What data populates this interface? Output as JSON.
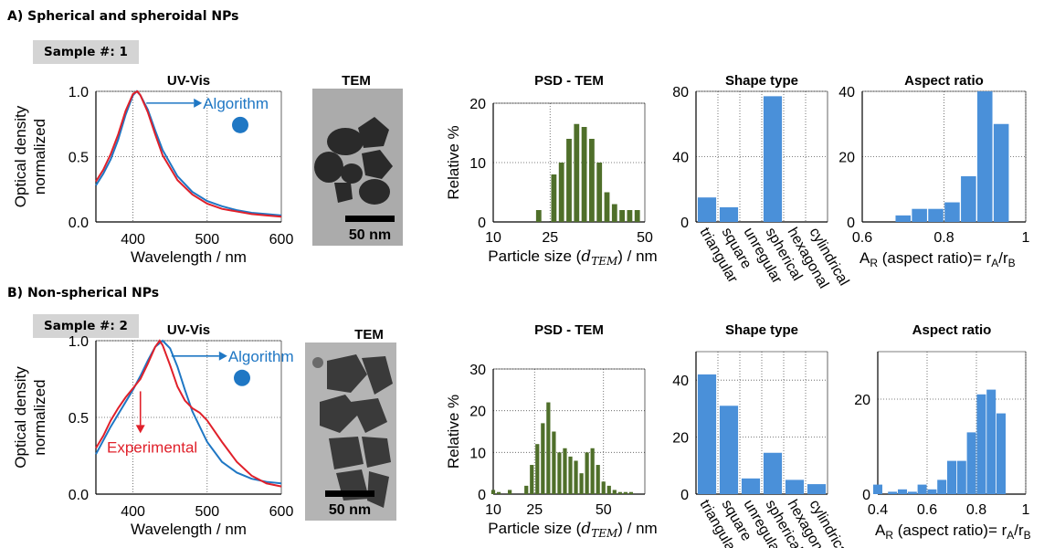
{
  "section_a": {
    "title": "A) Spherical and spheroidal  NPs",
    "sample_label": "Sample #: 1",
    "tem_title": "TEM",
    "tem_scale": "50 nm"
  },
  "section_b": {
    "title": "B) Non-spherical NPs",
    "sample_label": "Sample #: 2",
    "tem_title": "TEM",
    "tem_scale": "50 nm"
  },
  "colors": {
    "algorithm": "#1f77c4",
    "experimental": "#e0202a",
    "psd_bars": "#4f6f2a",
    "shape_bars": "#4a90d9",
    "badge": "#d4d4d4"
  },
  "chart_data": [
    {
      "id": "uvvis_a",
      "type": "line",
      "title": "UV-Vis",
      "xlabel": "Wavelength / nm",
      "ylabel": [
        "Optical density",
        "normalized"
      ],
      "xlim": [
        350,
        600
      ],
      "ylim": [
        0,
        1
      ],
      "xticks": [
        400,
        500,
        600
      ],
      "yticks": [
        0.0,
        0.5,
        1.0
      ],
      "ytick_labels": [
        "0.0",
        "0.5",
        "1.0"
      ],
      "grid": true,
      "annotations": [
        {
          "text": "Algorithm",
          "color": "#1f77c4"
        }
      ],
      "series": [
        {
          "key": "algorithm",
          "x": [
            350,
            360,
            370,
            380,
            390,
            400,
            405,
            410,
            420,
            430,
            440,
            460,
            480,
            500,
            520,
            540,
            560,
            580,
            600
          ],
          "y": [
            0.28,
            0.37,
            0.48,
            0.63,
            0.82,
            0.97,
            1.0,
            0.97,
            0.86,
            0.7,
            0.55,
            0.35,
            0.23,
            0.16,
            0.12,
            0.09,
            0.07,
            0.06,
            0.05
          ]
        },
        {
          "key": "experimental",
          "x": [
            350,
            360,
            370,
            380,
            390,
            400,
            406,
            410,
            420,
            430,
            440,
            460,
            480,
            500,
            520,
            540,
            560,
            580,
            600
          ],
          "y": [
            0.31,
            0.4,
            0.52,
            0.67,
            0.85,
            0.98,
            1.0,
            0.97,
            0.84,
            0.67,
            0.51,
            0.32,
            0.21,
            0.14,
            0.1,
            0.08,
            0.06,
            0.05,
            0.04
          ]
        }
      ]
    },
    {
      "id": "psd_a",
      "type": "bar",
      "title": "PSD - TEM",
      "xlabel": "Particle size (d_TEM) / nm",
      "ylabel": "Relative %",
      "xlim": [
        10,
        50
      ],
      "ylim": [
        0,
        20
      ],
      "xticks": [
        10,
        25,
        50
      ],
      "yticks": [
        0,
        10,
        20
      ],
      "grid": true,
      "x": [
        22,
        26,
        28,
        30,
        32,
        34,
        36,
        38,
        40,
        42,
        44,
        46,
        48
      ],
      "values": [
        2,
        8,
        10,
        14,
        16.5,
        16,
        14,
        10,
        5,
        3,
        2,
        2,
        2
      ]
    },
    {
      "id": "shape_a",
      "type": "bar",
      "title": "Shape type",
      "categories": [
        "triangular",
        "square",
        "unregular",
        "spherical",
        "hexagonal",
        "cylindrical"
      ],
      "values": [
        15,
        9,
        0,
        77,
        0,
        0
      ],
      "ylim": [
        0,
        80
      ],
      "yticks": [
        0,
        40,
        80
      ],
      "grid": true
    },
    {
      "id": "aspect_a",
      "type": "bar",
      "title": "Aspect ratio",
      "xlabel": [
        "A",
        "R",
        " (aspect ratio)= r",
        "A",
        "/r",
        "B"
      ],
      "xlim": [
        0.6,
        1.0
      ],
      "ylim": [
        0,
        40
      ],
      "xticks": [
        0.6,
        0.8,
        1
      ],
      "xtick_labels": [
        "0.6",
        "0.8",
        "1"
      ],
      "yticks": [
        0,
        20,
        40
      ],
      "grid": true,
      "x": [
        0.7,
        0.74,
        0.78,
        0.82,
        0.86,
        0.9,
        0.94,
        0.98
      ],
      "values": [
        2,
        4,
        4,
        6,
        14,
        40,
        30,
        0
      ]
    },
    {
      "id": "uvvis_b",
      "type": "line",
      "title": "UV-Vis",
      "xlabel": "Wavelength / nm",
      "ylabel": [
        "Optical density",
        "normalized"
      ],
      "xlim": [
        350,
        600
      ],
      "ylim": [
        0,
        1
      ],
      "xticks": [
        400,
        500,
        600
      ],
      "yticks": [
        0.0,
        0.5,
        1.0
      ],
      "ytick_labels": [
        "0.0",
        "0.5",
        "1.0"
      ],
      "grid": true,
      "annotations": [
        {
          "text": "Algorithm",
          "color": "#1f77c4"
        },
        {
          "text": "Experimental",
          "color": "#e0202a"
        }
      ],
      "series": [
        {
          "key": "algorithm",
          "x": [
            350,
            360,
            370,
            380,
            390,
            400,
            410,
            420,
            430,
            440,
            450,
            460,
            470,
            480,
            500,
            520,
            540,
            560,
            580,
            600
          ],
          "y": [
            0.26,
            0.35,
            0.44,
            0.52,
            0.6,
            0.68,
            0.77,
            0.87,
            0.96,
            1.0,
            0.95,
            0.83,
            0.68,
            0.54,
            0.34,
            0.21,
            0.14,
            0.1,
            0.08,
            0.07
          ]
        },
        {
          "key": "experimental",
          "x": [
            350,
            360,
            370,
            380,
            390,
            400,
            410,
            420,
            430,
            436,
            440,
            450,
            460,
            470,
            480,
            490,
            500,
            520,
            540,
            560,
            580,
            600
          ],
          "y": [
            0.3,
            0.38,
            0.48,
            0.56,
            0.63,
            0.69,
            0.75,
            0.85,
            0.96,
            1.0,
            0.97,
            0.84,
            0.7,
            0.61,
            0.56,
            0.53,
            0.48,
            0.34,
            0.21,
            0.12,
            0.07,
            0.05
          ]
        }
      ]
    },
    {
      "id": "psd_b",
      "type": "bar",
      "title": "PSD - TEM",
      "xlabel": "Particle size (d_TEM) / nm",
      "ylabel": "Relative %",
      "xlim": [
        10,
        65
      ],
      "ylim": [
        0,
        30
      ],
      "xticks": [
        10,
        25,
        50
      ],
      "yticks": [
        0,
        10,
        20,
        30
      ],
      "grid": true,
      "x": [
        10,
        12,
        16,
        22,
        24,
        26,
        28,
        30,
        32,
        34,
        36,
        38,
        40,
        42,
        44,
        46,
        48,
        50,
        52,
        54,
        56,
        58,
        60
      ],
      "values": [
        1,
        0.5,
        1,
        2,
        7,
        12,
        17,
        22,
        15,
        10,
        11,
        9,
        8,
        5,
        10,
        11,
        7,
        3,
        2,
        1,
        0.5,
        0.5,
        0.5
      ]
    },
    {
      "id": "shape_b",
      "type": "bar",
      "title": "Shape type",
      "categories": [
        "triangular",
        "square",
        "unregular",
        "spherical",
        "hexagonal",
        "cylindrical"
      ],
      "values": [
        42,
        31,
        5.5,
        14.5,
        5,
        3.5
      ],
      "ylim": [
        0,
        50
      ],
      "yticks": [
        0,
        20,
        40
      ],
      "grid": true
    },
    {
      "id": "aspect_b",
      "type": "bar",
      "title": "Aspect ratio",
      "xlabel": [
        "A",
        "R",
        " (aspect ratio)= r",
        "A",
        "/r",
        "B"
      ],
      "xlim": [
        0.4,
        1.0
      ],
      "ylim": [
        0,
        30
      ],
      "xticks": [
        0.4,
        0.6,
        0.8,
        1
      ],
      "xtick_labels": [
        "0.4",
        "0.6",
        "0.8",
        "1"
      ],
      "yticks": [
        0,
        20
      ],
      "grid": true,
      "x": [
        0.4,
        0.46,
        0.5,
        0.54,
        0.58,
        0.62,
        0.66,
        0.7,
        0.74,
        0.78,
        0.82,
        0.86,
        0.9,
        0.94,
        0.98
      ],
      "values": [
        2,
        0.5,
        1,
        0.5,
        2,
        1,
        3,
        7,
        7,
        13,
        21,
        22,
        17,
        0,
        0
      ]
    }
  ]
}
